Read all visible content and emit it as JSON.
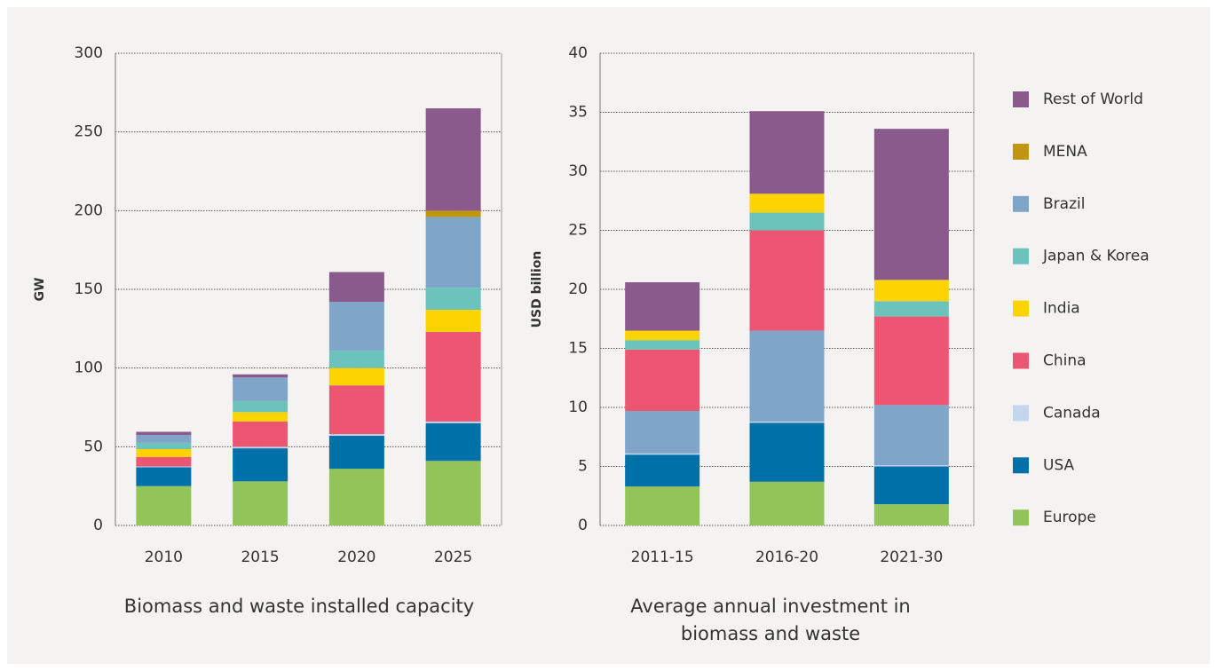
{
  "chart_data": [
    {
      "type": "bar",
      "title": "Biomass and waste installed capacity",
      "ylabel": "GW",
      "categories": [
        "2010",
        "2015",
        "2020",
        "2025"
      ],
      "ylim": [
        0,
        300
      ],
      "yticks": [
        0,
        50,
        100,
        150,
        200,
        250,
        300
      ],
      "grid": true,
      "stacked": true,
      "series": [
        {
          "name": "Europe",
          "color": "#93c45a",
          "values": [
            25,
            28,
            36,
            41
          ]
        },
        {
          "name": "USA",
          "color": "#0071a8",
          "values": [
            12,
            21,
            21,
            24
          ]
        },
        {
          "name": "Canada",
          "color": "#c4d5ee",
          "values": [
            0.5,
            1,
            1,
            1
          ]
        },
        {
          "name": "China",
          "color": "#ec5672",
          "values": [
            6,
            16,
            31,
            57
          ]
        },
        {
          "name": "India",
          "color": "#fdd300",
          "values": [
            5,
            6,
            11,
            14
          ]
        },
        {
          "name": "Japan & Korea",
          "color": "#6cc3bc",
          "values": [
            4,
            7,
            11,
            14
          ]
        },
        {
          "name": "Brazil",
          "color": "#7fa6c9",
          "values": [
            5,
            15,
            31,
            45
          ]
        },
        {
          "name": "MENA",
          "color": "#c0950f",
          "values": [
            0,
            0,
            0,
            4
          ]
        },
        {
          "name": "Rest of World",
          "color": "#8b5a8c",
          "values": [
            2,
            2,
            19,
            65
          ]
        }
      ]
    },
    {
      "type": "bar",
      "title": "Average annual investment in biomass and waste",
      "ylabel": "USD billion",
      "categories": [
        "2011-15",
        "2016-20",
        "2021-30"
      ],
      "ylim": [
        0,
        40
      ],
      "yticks": [
        0,
        5,
        10,
        15,
        20,
        25,
        30,
        35,
        40
      ],
      "grid": true,
      "stacked": true,
      "series": [
        {
          "color": "#93c45a",
          "values": [
            3.3,
            3.7,
            1.8
          ]
        },
        {
          "color": "#0071a8",
          "values": [
            2.7,
            5.0,
            3.2
          ]
        },
        {
          "color": "#c4d5ee",
          "values": [
            0.1,
            0.1,
            0.1
          ]
        },
        {
          "color": "#7fa6c9",
          "values": [
            3.6,
            7.7,
            5.1
          ]
        },
        {
          "color": "#ec5672",
          "values": [
            5.2,
            8.5,
            7.5
          ]
        },
        {
          "color": "#6cc3bc",
          "values": [
            0.8,
            1.5,
            1.3
          ]
        },
        {
          "color": "#fdd300",
          "values": [
            0.8,
            1.6,
            1.8
          ]
        },
        {
          "color": "#8b5a8c",
          "values": [
            4.1,
            7.0,
            12.8
          ]
        }
      ]
    }
  ]
}
